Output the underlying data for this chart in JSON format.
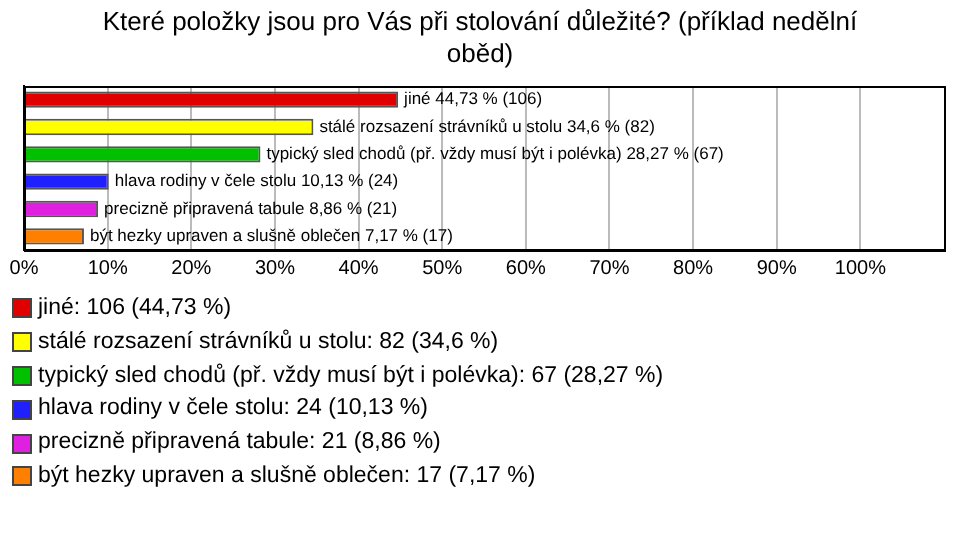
{
  "chart_data": {
    "type": "bar",
    "orientation": "horizontal",
    "stacked": true,
    "title": "Které položky jsou pro Vás při stolování důležité? (příklad nedělní oběd)",
    "categories": [
      null,
      null,
      null,
      null,
      null,
      null
    ],
    "series": [
      {
        "name": "jiné: 106 (44,73 %)",
        "color": "#e00000",
        "values": [
          44.73,
          null,
          null,
          null,
          null,
          null
        ],
        "value_labels": [
          "jiné 44,73 % (106)",
          null,
          null,
          null,
          null,
          null
        ]
      },
      {
        "name": "stálé rozsazení strávníků u stolu: 82 (34,6 %)",
        "color": "#ffff00",
        "values": [
          null,
          34.6,
          null,
          null,
          null,
          null
        ],
        "value_labels": [
          null,
          "stálé rozsazení strávníků u stolu 34,6 % (82)",
          null,
          null,
          null,
          null
        ]
      },
      {
        "name": "typický sled chodů (př. vždy musí být i polévka): 67 (28,27 %)",
        "color": "#00c000",
        "values": [
          null,
          null,
          28.27,
          null,
          null,
          null
        ],
        "value_labels": [
          null,
          null,
          "typický sled chodů (př. vždy musí být i polévka) 28,27 % (67)",
          null,
          null,
          null
        ]
      },
      {
        "name": "hlava rodiny v čele stolu: 24 (10,13 %)",
        "color": "#2020ff",
        "values": [
          null,
          null,
          null,
          10.13,
          null,
          null
        ],
        "value_labels": [
          null,
          null,
          null,
          "hlava rodiny v čele stolu 10,13 % (24)",
          null,
          null
        ]
      },
      {
        "name": "precizně připravená tabule: 21 (8,86 %)",
        "color": "#e020e0",
        "values": [
          null,
          null,
          null,
          null,
          8.86,
          null
        ],
        "value_labels": [
          null,
          null,
          null,
          null,
          "precizně připravená tabule 8,86 % (21)",
          null
        ]
      },
      {
        "name": "být hezky upraven a slušně oblečen: 17 (7,17 %)",
        "color": "#ff8000",
        "values": [
          null,
          null,
          null,
          null,
          null,
          7.17
        ],
        "value_labels": [
          null,
          null,
          null,
          null,
          null,
          "být hezky upraven a slušně oblečen 7,17 % (17)"
        ]
      }
    ],
    "xlim": [
      0,
      110
    ],
    "xticks": [
      {
        "value": 0,
        "label": "0%"
      },
      {
        "value": 10,
        "label": "10%"
      },
      {
        "value": 20,
        "label": "20%"
      },
      {
        "value": 30,
        "label": "30%"
      },
      {
        "value": 40,
        "label": "40%"
      },
      {
        "value": 50,
        "label": "50%"
      },
      {
        "value": 60,
        "label": "60%"
      },
      {
        "value": 70,
        "label": "70%"
      },
      {
        "value": 80,
        "label": "80%"
      },
      {
        "value": 90,
        "label": "90%"
      },
      {
        "value": 100,
        "label": "100%"
      }
    ],
    "grid": "x",
    "tick_labels": "x",
    "legend": "bottom"
  }
}
